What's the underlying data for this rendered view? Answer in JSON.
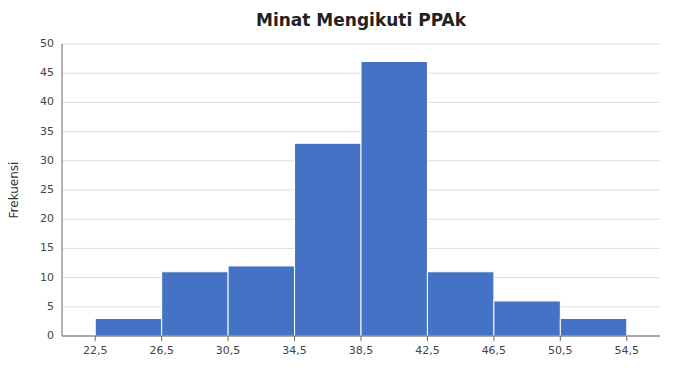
{
  "chart_data": {
    "type": "histogram",
    "title": "Minat Mengikuti PPAk",
    "y_label": "Frekuensi",
    "bins": [
      22.5,
      26.5,
      30.5,
      34.5,
      38.5,
      42.5,
      46.5,
      50.5,
      54.5
    ],
    "values": [
      3,
      11,
      12,
      33,
      47,
      11,
      6,
      3
    ],
    "color": "#4472C4",
    "xlim": [
      20.5,
      56.5
    ],
    "xticks": [
      {
        "value": 22.5,
        "label": "22,5"
      },
      {
        "value": 26.5,
        "label": "26,5"
      },
      {
        "value": 30.5,
        "label": "30,5"
      },
      {
        "value": 34.5,
        "label": "34,5"
      },
      {
        "value": 38.5,
        "label": "38,5"
      },
      {
        "value": 42.5,
        "label": "42,5"
      },
      {
        "value": 46.5,
        "label": "46,5"
      },
      {
        "value": 50.5,
        "label": "50,5"
      },
      {
        "value": 54.5,
        "label": "54,5"
      }
    ],
    "ylim": [
      0,
      50
    ],
    "yticks": [
      0,
      5,
      10,
      15,
      20,
      25,
      30,
      35,
      40,
      45,
      50
    ],
    "grid": true
  }
}
